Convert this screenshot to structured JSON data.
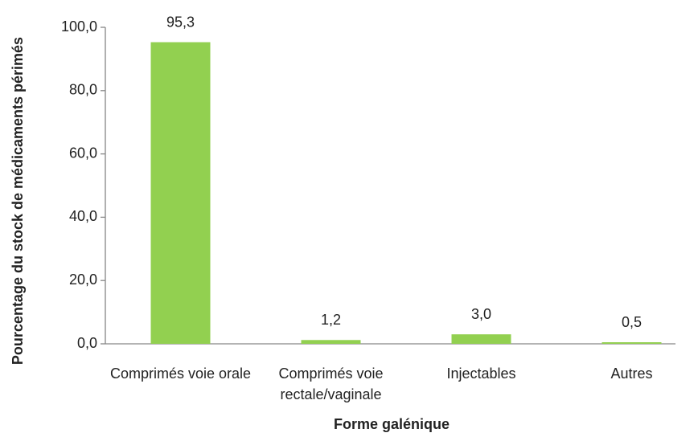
{
  "chart_data": {
    "type": "bar",
    "x_label": "Forme galénique",
    "y_label": "Pourcentage du stock de médicaments périmés",
    "categories": [
      "Comprimés voie orale",
      "Comprimés voie rectale/vaginale",
      "Injectables",
      "Autres"
    ],
    "values": [
      95.3,
      1.2,
      3.0,
      0.5
    ],
    "value_labels": [
      "95,3",
      "1,2",
      "3,0",
      "0,5"
    ],
    "color": "#92d050",
    "ylim": [
      0,
      100
    ],
    "yticks": [
      {
        "value": 0,
        "label": "0,0"
      },
      {
        "value": 20,
        "label": "20,0"
      },
      {
        "value": 40,
        "label": "40,0"
      },
      {
        "value": 60,
        "label": "60,0"
      },
      {
        "value": 80,
        "label": "80,0"
      },
      {
        "value": 100,
        "label": "100,0"
      }
    ],
    "grid": false
  }
}
